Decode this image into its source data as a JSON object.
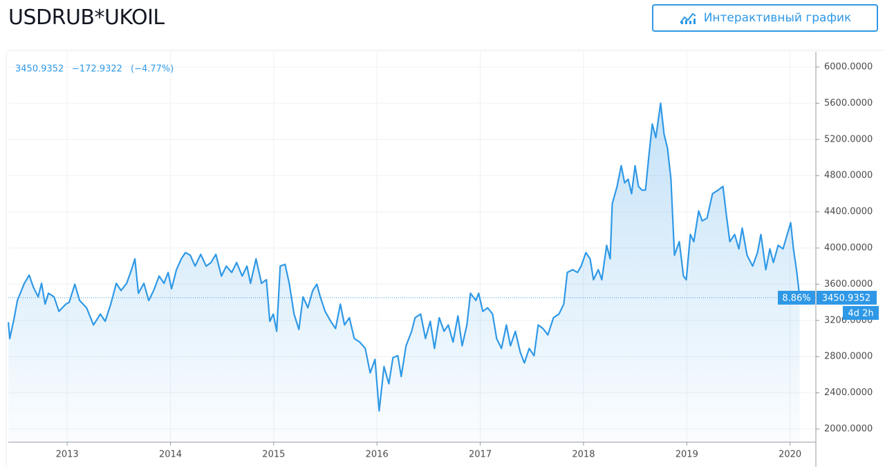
{
  "header": {
    "title": "USDRUB*UKOIL",
    "button": "Интерактивный график"
  },
  "chart_data": {
    "type": "line",
    "legend_values": {
      "last": 3450.9352,
      "change": "−172.9322",
      "change_percent": "(−4.77%)"
    },
    "last_value": 3450.9352,
    "percent_label": "8.86%",
    "countdown": "4d 2h",
    "xlim": [
      2012.43,
      2020.25
    ],
    "xticks": [
      2013,
      2014,
      2015,
      2016,
      2017,
      2018,
      2019,
      2020
    ],
    "ylim": [
      1855,
      6168
    ],
    "yticks": [
      {
        "value": 2000,
        "label": "2000.0000"
      },
      {
        "value": 2400,
        "label": "2400.0000"
      },
      {
        "value": 2800,
        "label": "2800.0000"
      },
      {
        "value": 3200,
        "label": "3200.0000"
      },
      {
        "value": 3600,
        "label": "3600.0000"
      },
      {
        "value": 4000,
        "label": "4000.0000"
      },
      {
        "value": 4400,
        "label": "4400.0000"
      },
      {
        "value": 4800,
        "label": "4800.0000"
      },
      {
        "value": 5200,
        "label": "5200.0000"
      },
      {
        "value": 5600,
        "label": "5600.0000"
      },
      {
        "value": 6000,
        "label": "6000.0000"
      }
    ],
    "grid": true,
    "color": "#2e98e6",
    "x": [
      2012.431,
      2012.444,
      2012.484,
      2012.518,
      2012.585,
      2012.632,
      2012.672,
      2012.719,
      2012.752,
      2012.786,
      2012.819,
      2012.873,
      2012.92,
      2012.987,
      2013.02,
      2013.074,
      2013.121,
      2013.188,
      2013.255,
      2013.322,
      2013.368,
      2013.422,
      2013.476,
      2013.522,
      2013.576,
      2013.623,
      2013.656,
      2013.69,
      2013.743,
      2013.79,
      2013.837,
      2013.891,
      2013.938,
      2013.978,
      2014.011,
      2014.058,
      2014.105,
      2014.145,
      2014.192,
      2014.239,
      2014.293,
      2014.346,
      2014.393,
      2014.44,
      2014.494,
      2014.541,
      2014.594,
      2014.641,
      2014.695,
      2014.741,
      2014.775,
      2014.829,
      2014.882,
      2014.929,
      2014.962,
      2014.996,
      2015.029,
      2015.063,
      2015.11,
      2015.15,
      2015.197,
      2015.244,
      2015.284,
      2015.331,
      2015.378,
      2015.418,
      2015.451,
      2015.498,
      2015.552,
      2015.599,
      2015.646,
      2015.686,
      2015.733,
      2015.78,
      2015.833,
      2015.887,
      2015.934,
      2015.981,
      2016.021,
      2016.068,
      2016.115,
      2016.155,
      2016.202,
      2016.235,
      2016.282,
      2016.336,
      2016.369,
      2016.423,
      2016.47,
      2016.516,
      2016.557,
      2016.603,
      2016.65,
      2016.691,
      2016.737,
      2016.784,
      2016.825,
      2016.871,
      2016.905,
      2016.958,
      2016.985,
      2017.025,
      2017.072,
      2017.119,
      2017.159,
      2017.206,
      2017.253,
      2017.293,
      2017.34,
      2017.387,
      2017.427,
      2017.474,
      2017.521,
      2017.561,
      2017.608,
      2017.655,
      2017.709,
      2017.762,
      2017.809,
      2017.843,
      2017.896,
      2017.943,
      2017.977,
      2018.023,
      2018.064,
      2018.097,
      2018.144,
      2018.177,
      2018.224,
      2018.258,
      2018.278,
      2018.325,
      2018.365,
      2018.398,
      2018.432,
      2018.466,
      2018.499,
      2018.533,
      2018.566,
      2018.6,
      2018.633,
      2018.666,
      2018.7,
      2018.747,
      2018.78,
      2018.814,
      2018.847,
      2018.881,
      2018.928,
      2018.968,
      2018.995,
      2019.035,
      2019.068,
      2019.115,
      2019.149,
      2019.196,
      2019.249,
      2019.303,
      2019.35,
      2019.383,
      2019.417,
      2019.464,
      2019.504,
      2019.537,
      2019.584,
      2019.638,
      2019.685,
      2019.718,
      2019.765,
      2019.805,
      2019.839,
      2019.885,
      2019.932,
      2019.973,
      2020.006,
      2020.033,
      2020.066,
      2020.093
    ],
    "series": [
      {
        "name": "USDRUB*UKOIL",
        "color": "#2e98e6",
        "values": [
          3180,
          3000,
          3210,
          3420,
          3610,
          3700,
          3570,
          3460,
          3610,
          3380,
          3500,
          3460,
          3300,
          3380,
          3400,
          3600,
          3420,
          3340,
          3150,
          3270,
          3190,
          3380,
          3610,
          3530,
          3610,
          3760,
          3880,
          3500,
          3610,
          3420,
          3530,
          3690,
          3610,
          3730,
          3550,
          3760,
          3880,
          3950,
          3920,
          3800,
          3930,
          3800,
          3840,
          3930,
          3690,
          3800,
          3730,
          3840,
          3690,
          3800,
          3610,
          3880,
          3610,
          3650,
          3190,
          3270,
          3080,
          3800,
          3820,
          3610,
          3270,
          3100,
          3460,
          3340,
          3530,
          3600,
          3460,
          3300,
          3190,
          3110,
          3380,
          3150,
          3230,
          3000,
          2960,
          2890,
          2620,
          2770,
          2200,
          2690,
          2500,
          2790,
          2810,
          2580,
          2920,
          3080,
          3230,
          3270,
          3000,
          3190,
          2890,
          3230,
          3080,
          3150,
          2960,
          3250,
          2920,
          3150,
          3500,
          3420,
          3500,
          3300,
          3340,
          3270,
          3000,
          2890,
          3150,
          2920,
          3080,
          2850,
          2730,
          2890,
          2810,
          3150,
          3110,
          3040,
          3230,
          3270,
          3380,
          3730,
          3760,
          3730,
          3800,
          3950,
          3880,
          3650,
          3760,
          3650,
          4030,
          3880,
          4490,
          4680,
          4910,
          4720,
          4760,
          4600,
          4910,
          4680,
          4640,
          4640,
          5020,
          5370,
          5220,
          5600,
          5260,
          5100,
          4760,
          3920,
          4070,
          3690,
          3650,
          4150,
          4070,
          4410,
          4300,
          4330,
          4600,
          4640,
          4680,
          4370,
          4070,
          4150,
          3990,
          4220,
          3920,
          3800,
          3950,
          4150,
          3760,
          3990,
          3840,
          4030,
          3990,
          4150,
          4280,
          3990,
          3730,
          3450.9352
        ]
      }
    ]
  }
}
